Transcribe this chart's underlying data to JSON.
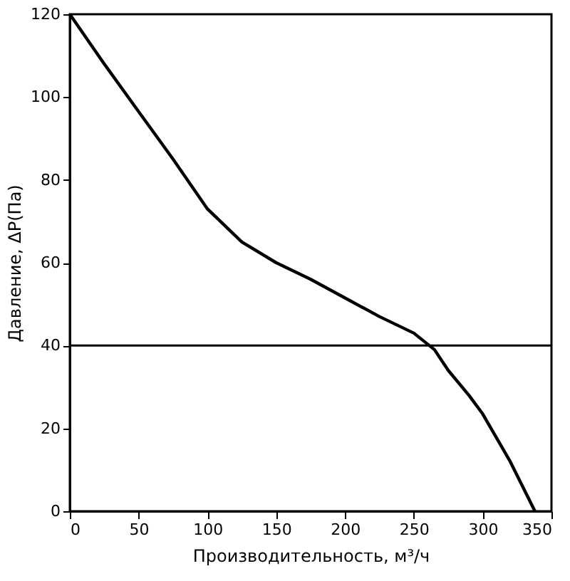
{
  "chart_data": {
    "type": "line",
    "xlabel": "Производительность, м³/ч",
    "ylabel": "Давление, ΔP(Па)",
    "x": [
      0,
      25,
      50,
      75,
      100,
      125,
      150,
      175,
      200,
      225,
      250,
      265,
      275,
      290,
      300,
      320,
      338
    ],
    "series": [
      {
        "color": "#000000",
        "values": [
          120,
          108,
          96.5,
          85,
          73,
          65,
          60,
          56,
          51.5,
          47,
          43,
          39,
          34,
          28,
          23.5,
          12,
          0
        ]
      }
    ],
    "xlim": [
      0,
      350
    ],
    "xticks": [
      0,
      50,
      100,
      150,
      200,
      250,
      300,
      350
    ],
    "ylim": [
      0,
      120
    ],
    "yticks": [
      0,
      20,
      40,
      60,
      80,
      100,
      120
    ],
    "ref_lines": [
      {
        "axis": "y",
        "value": 40,
        "color": "#000000"
      }
    ],
    "grid": false,
    "line_style": "solid",
    "marker": "none"
  }
}
